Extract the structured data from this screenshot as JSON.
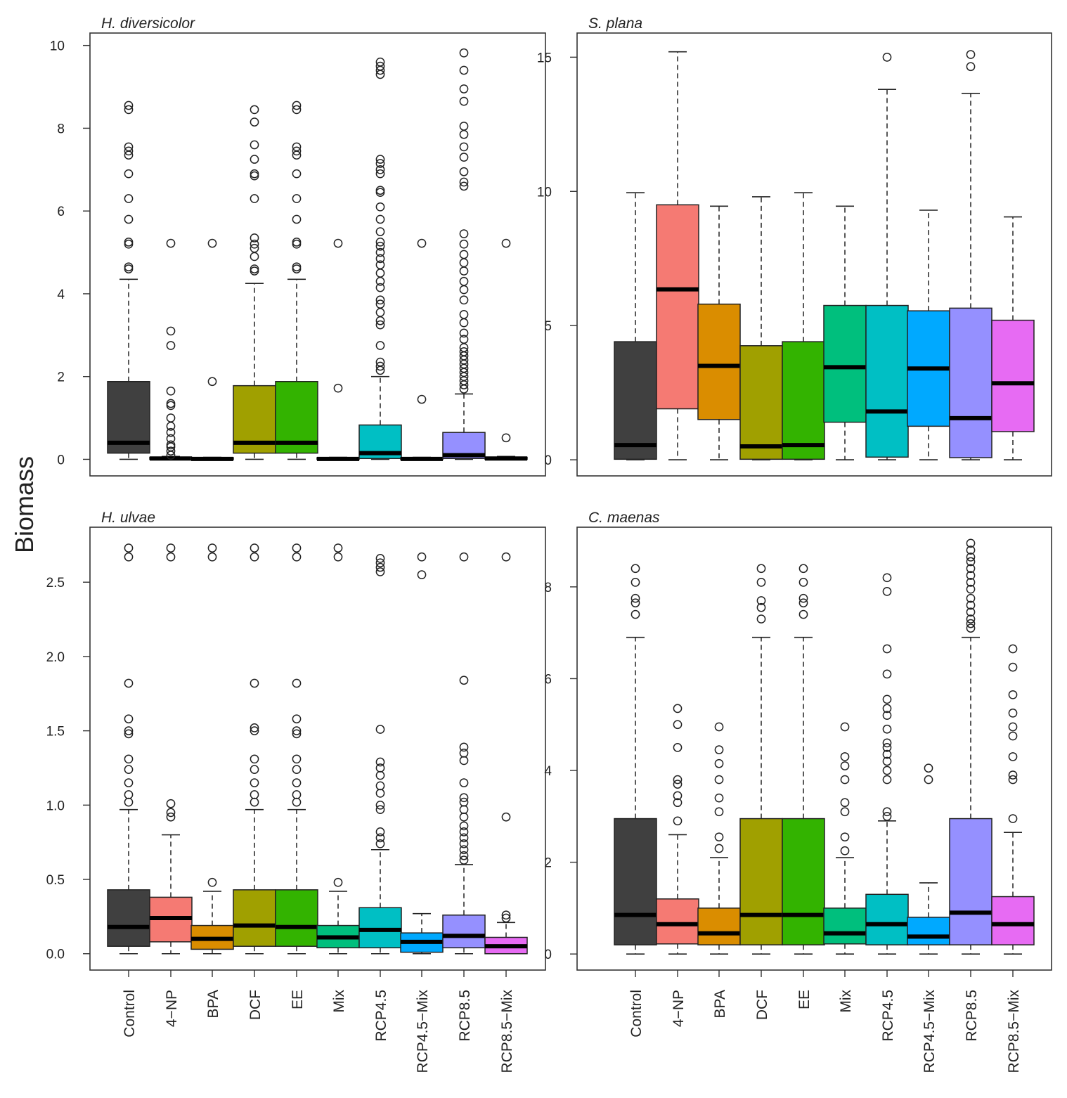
{
  "chart_data": {
    "type": "box",
    "ylabel": "Biomass",
    "categories": [
      "Control",
      "4−NP",
      "BPA",
      "DCF",
      "EE",
      "Mix",
      "RCP4.5",
      "RCP4.5−Mix",
      "RCP8.5",
      "RCP8.5−Mix"
    ],
    "colors": [
      "#404040",
      "#f57a73",
      "#da8d00",
      "#a0a000",
      "#33b300",
      "#00bf7d",
      "#00bfc4",
      "#00a9ff",
      "#9590ff",
      "#e76bf3"
    ],
    "panels": [
      {
        "title": "H. diversicolor",
        "ylim": [
          -0.4,
          10.3
        ],
        "yticks": [
          0,
          2,
          4,
          6,
          8,
          10
        ],
        "ytick_labels": [
          "0",
          "2",
          "4",
          "6",
          "8",
          "10"
        ],
        "boxes": [
          {
            "whisker_low": 0,
            "q1": 0.15,
            "median": 0.4,
            "q3": 1.88,
            "whisker_high": 4.35,
            "outliers": [
              4.6,
              4.65,
              5.2,
              5.25,
              5.8,
              6.3,
              6.9,
              7.35,
              7.45,
              7.55,
              8.45,
              8.55
            ]
          },
          {
            "whisker_low": 0,
            "q1": 0,
            "median": 0.02,
            "q3": 0.05,
            "whisker_high": 0.07,
            "outliers": [
              0.1,
              0.2,
              0.3,
              0.35,
              0.5,
              0.65,
              0.8,
              1.0,
              1.3,
              1.35,
              1.65,
              2.75,
              3.1,
              5.22
            ]
          },
          {
            "whisker_low": 0,
            "q1": 0,
            "median": 0.01,
            "q3": 0.04,
            "whisker_high": 0.05,
            "outliers": [
              1.88,
              5.22
            ]
          },
          {
            "whisker_low": 0,
            "q1": 0.15,
            "median": 0.4,
            "q3": 1.78,
            "whisker_high": 4.25,
            "outliers": [
              4.55,
              4.6,
              4.9,
              5.1,
              5.2,
              5.35,
              6.3,
              6.85,
              6.9,
              7.25,
              7.6,
              8.15,
              8.45
            ]
          },
          {
            "whisker_low": 0,
            "q1": 0.15,
            "median": 0.4,
            "q3": 1.88,
            "whisker_high": 4.35,
            "outliers": [
              4.6,
              4.65,
              5.2,
              5.25,
              5.8,
              6.3,
              6.9,
              7.35,
              7.45,
              7.55,
              8.45,
              8.55
            ]
          },
          {
            "whisker_low": 0,
            "q1": 0,
            "median": 0.01,
            "q3": 0.04,
            "whisker_high": 0.05,
            "outliers": [
              1.72,
              5.22
            ]
          },
          {
            "whisker_low": 0,
            "q1": 0.02,
            "median": 0.15,
            "q3": 0.83,
            "whisker_high": 2.0,
            "outliers": [
              2.15,
              2.25,
              2.35,
              2.75,
              3.25,
              3.35,
              3.55,
              3.75,
              3.85,
              4.15,
              4.3,
              4.5,
              4.7,
              4.85,
              5.0,
              5.15,
              5.25,
              5.5,
              5.8,
              6.1,
              6.45,
              6.5,
              6.9,
              7.0,
              7.15,
              7.25,
              9.3,
              9.4,
              9.5,
              9.6
            ]
          },
          {
            "whisker_low": 0,
            "q1": 0,
            "median": 0.01,
            "q3": 0.04,
            "whisker_high": 0.05,
            "outliers": [
              1.45,
              5.22
            ]
          },
          {
            "whisker_low": 0,
            "q1": 0.02,
            "median": 0.1,
            "q3": 0.65,
            "whisker_high": 1.58,
            "outliers": [
              1.7,
              1.8,
              1.9,
              2.0,
              2.1,
              2.2,
              2.3,
              2.4,
              2.5,
              2.6,
              2.7,
              2.9,
              3.05,
              3.3,
              3.5,
              3.85,
              4.1,
              4.3,
              4.55,
              4.75,
              4.95,
              5.2,
              5.45,
              6.6,
              6.7,
              6.95,
              7.3,
              7.55,
              7.85,
              8.05,
              8.65,
              8.95,
              9.4,
              9.82
            ]
          },
          {
            "whisker_low": 0,
            "q1": 0,
            "median": 0.02,
            "q3": 0.05,
            "whisker_high": 0.07,
            "outliers": [
              0.52,
              5.22
            ]
          }
        ]
      },
      {
        "title": "S. plana",
        "ylim": [
          -0.6,
          15.9
        ],
        "yticks": [
          0,
          5,
          10,
          15
        ],
        "ytick_labels": [
          "0",
          "5",
          "10",
          "15"
        ],
        "boxes": [
          {
            "whisker_low": 0,
            "q1": 0.02,
            "median": 0.55,
            "q3": 4.4,
            "whisker_high": 9.95,
            "outliers": []
          },
          {
            "whisker_low": 0,
            "q1": 1.9,
            "median": 6.35,
            "q3": 9.5,
            "whisker_high": 15.2,
            "outliers": []
          },
          {
            "whisker_low": 0,
            "q1": 1.5,
            "median": 3.5,
            "q3": 5.8,
            "whisker_high": 9.45,
            "outliers": []
          },
          {
            "whisker_low": 0,
            "q1": 0.02,
            "median": 0.5,
            "q3": 4.25,
            "whisker_high": 9.8,
            "outliers": []
          },
          {
            "whisker_low": 0,
            "q1": 0.02,
            "median": 0.55,
            "q3": 4.4,
            "whisker_high": 9.95,
            "outliers": []
          },
          {
            "whisker_low": 0,
            "q1": 1.4,
            "median": 3.45,
            "q3": 5.75,
            "whisker_high": 9.45,
            "outliers": []
          },
          {
            "whisker_low": 0,
            "q1": 0.1,
            "median": 1.8,
            "q3": 5.75,
            "whisker_high": 13.8,
            "outliers": [
              15.0
            ]
          },
          {
            "whisker_low": 0,
            "q1": 1.25,
            "median": 3.4,
            "q3": 5.55,
            "whisker_high": 9.3,
            "outliers": []
          },
          {
            "whisker_low": 0,
            "q1": 0.08,
            "median": 1.55,
            "q3": 5.65,
            "whisker_high": 13.65,
            "outliers": [
              14.65,
              15.1
            ]
          },
          {
            "whisker_low": 0,
            "q1": 1.05,
            "median": 2.85,
            "q3": 5.2,
            "whisker_high": 9.05,
            "outliers": []
          }
        ]
      },
      {
        "title": "H. ulvae",
        "ylim": [
          -0.11,
          2.87
        ],
        "yticks": [
          0,
          0.5,
          1.0,
          1.5,
          2.0,
          2.5
        ],
        "ytick_labels": [
          "0.0",
          "0.5",
          "1.0",
          "1.5",
          "2.0",
          "2.5"
        ],
        "boxes": [
          {
            "whisker_low": 0,
            "q1": 0.05,
            "median": 0.18,
            "q3": 0.43,
            "whisker_high": 0.97,
            "outliers": [
              1.02,
              1.07,
              1.15,
              1.24,
              1.31,
              1.48,
              1.5,
              1.58,
              1.82,
              2.67,
              2.73
            ]
          },
          {
            "whisker_low": 0,
            "q1": 0.08,
            "median": 0.24,
            "q3": 0.38,
            "whisker_high": 0.8,
            "outliers": [
              0.92,
              0.95,
              1.01,
              2.67,
              2.73
            ]
          },
          {
            "whisker_low": 0,
            "q1": 0.03,
            "median": 0.1,
            "q3": 0.19,
            "whisker_high": 0.42,
            "outliers": [
              0.48,
              2.67,
              2.73
            ]
          },
          {
            "whisker_low": 0,
            "q1": 0.05,
            "median": 0.19,
            "q3": 0.43,
            "whisker_high": 0.97,
            "outliers": [
              1.02,
              1.07,
              1.15,
              1.24,
              1.31,
              1.5,
              1.52,
              1.82,
              2.67,
              2.73
            ]
          },
          {
            "whisker_low": 0,
            "q1": 0.05,
            "median": 0.18,
            "q3": 0.43,
            "whisker_high": 0.97,
            "outliers": [
              1.02,
              1.07,
              1.15,
              1.24,
              1.31,
              1.48,
              1.5,
              1.58,
              1.82,
              2.67,
              2.73
            ]
          },
          {
            "whisker_low": 0,
            "q1": 0.04,
            "median": 0.11,
            "q3": 0.19,
            "whisker_high": 0.42,
            "outliers": [
              0.48,
              2.67,
              2.73
            ]
          },
          {
            "whisker_low": 0,
            "q1": 0.04,
            "median": 0.16,
            "q3": 0.31,
            "whisker_high": 0.7,
            "outliers": [
              0.74,
              0.78,
              0.82,
              0.97,
              1.0,
              1.08,
              1.13,
              1.2,
              1.25,
              1.29,
              1.51,
              2.57,
              2.6,
              2.63,
              2.66
            ]
          },
          {
            "whisker_low": 0,
            "q1": 0.01,
            "median": 0.08,
            "q3": 0.14,
            "whisker_high": 0.27,
            "outliers": [
              2.55,
              2.67
            ]
          },
          {
            "whisker_low": 0,
            "q1": 0.04,
            "median": 0.12,
            "q3": 0.26,
            "whisker_high": 0.6,
            "outliers": [
              0.63,
              0.66,
              0.7,
              0.74,
              0.78,
              0.82,
              0.86,
              0.92,
              0.97,
              1.02,
              1.05,
              1.15,
              1.3,
              1.35,
              1.39,
              1.84,
              2.67
            ]
          },
          {
            "whisker_low": 0,
            "q1": 0,
            "median": 0.05,
            "q3": 0.11,
            "whisker_high": 0.21,
            "outliers": [
              0.24,
              0.26,
              0.92,
              2.67
            ]
          }
        ]
      },
      {
        "title": "C. maenas",
        "ylim": [
          -0.35,
          9.3
        ],
        "yticks": [
          0,
          2,
          4,
          6,
          8
        ],
        "ytick_labels": [
          "0",
          "2",
          "4",
          "6",
          "8"
        ],
        "boxes": [
          {
            "whisker_low": 0,
            "q1": 0.2,
            "median": 0.85,
            "q3": 2.95,
            "whisker_high": 6.9,
            "outliers": [
              7.4,
              7.65,
              7.75,
              8.1,
              8.4
            ]
          },
          {
            "whisker_low": 0,
            "q1": 0.22,
            "median": 0.65,
            "q3": 1.2,
            "whisker_high": 2.6,
            "outliers": [
              2.9,
              3.3,
              3.45,
              3.7,
              3.8,
              4.5,
              5.0,
              5.35
            ]
          },
          {
            "whisker_low": 0,
            "q1": 0.2,
            "median": 0.45,
            "q3": 1.0,
            "whisker_high": 2.1,
            "outliers": [
              2.3,
              2.55,
              3.1,
              3.4,
              3.8,
              4.15,
              4.45,
              4.95
            ]
          },
          {
            "whisker_low": 0,
            "q1": 0.2,
            "median": 0.85,
            "q3": 2.95,
            "whisker_high": 6.9,
            "outliers": [
              7.3,
              7.55,
              7.7,
              8.1,
              8.4
            ]
          },
          {
            "whisker_low": 0,
            "q1": 0.2,
            "median": 0.85,
            "q3": 2.95,
            "whisker_high": 6.9,
            "outliers": [
              7.4,
              7.65,
              7.75,
              8.1,
              8.4
            ]
          },
          {
            "whisker_low": 0,
            "q1": 0.22,
            "median": 0.45,
            "q3": 1.0,
            "whisker_high": 2.1,
            "outliers": [
              2.25,
              2.55,
              3.1,
              3.3,
              3.8,
              4.1,
              4.3,
              4.95
            ]
          },
          {
            "whisker_low": 0,
            "q1": 0.2,
            "median": 0.65,
            "q3": 1.3,
            "whisker_high": 2.9,
            "outliers": [
              3.0,
              3.1,
              3.8,
              4.0,
              4.2,
              4.35,
              4.5,
              4.6,
              4.9,
              5.2,
              5.35,
              5.55,
              6.1,
              6.65,
              7.9,
              8.2
            ]
          },
          {
            "whisker_low": 0,
            "q1": 0.2,
            "median": 0.38,
            "q3": 0.8,
            "whisker_high": 1.55,
            "outliers": [
              3.8,
              4.05
            ]
          },
          {
            "whisker_low": 0,
            "q1": 0.2,
            "median": 0.9,
            "q3": 2.95,
            "whisker_high": 6.9,
            "outliers": [
              7.1,
              7.2,
              7.3,
              7.45,
              7.6,
              7.75,
              7.95,
              8.1,
              8.25,
              8.4,
              8.55,
              8.65,
              8.8,
              8.95
            ]
          },
          {
            "whisker_low": 0,
            "q1": 0.2,
            "median": 0.65,
            "q3": 1.25,
            "whisker_high": 2.65,
            "outliers": [
              2.95,
              3.8,
              3.9,
              4.3,
              4.75,
              4.95,
              5.25,
              5.65,
              6.25,
              6.65
            ]
          }
        ]
      }
    ]
  }
}
